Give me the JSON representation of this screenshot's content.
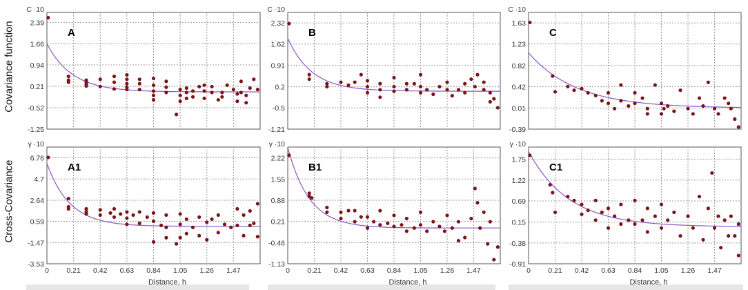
{
  "row_labels": [
    "Covariance function",
    "Cross-Covariance"
  ],
  "axis": {
    "xlabel": "Distance, h",
    "x_ticks": [
      "0",
      "0.21",
      "0.42",
      "0.63",
      "0.84",
      "1.05",
      "1.26",
      "1.47"
    ],
    "x_range": [
      0,
      1.68
    ],
    "units_top": "C ·10",
    "units_bottom": "γ ·10"
  },
  "colors": {
    "points": "#7b1418",
    "curve": "#8a55c6",
    "grid": "#9a9a9a"
  },
  "chart_data": [
    {
      "type": "scatter",
      "label": "A",
      "ylabel": "C ·10",
      "y_ticks": [
        "2.39",
        "1.66",
        "0.94",
        "0.21",
        "-0.52",
        "-1.25"
      ],
      "ylim": [
        -1.25,
        2.73
      ],
      "curve": {
        "nugget": 0.02,
        "sill": 1.64,
        "range": 0.2
      },
      "x": [
        0.01,
        0.17,
        0.17,
        0.17,
        0.31,
        0.31,
        0.31,
        0.31,
        0.42,
        0.42,
        0.53,
        0.53,
        0.53,
        0.63,
        0.63,
        0.63,
        0.63,
        0.63,
        0.73,
        0.73,
        0.73,
        0.84,
        0.84,
        0.84,
        0.84,
        0.84,
        0.94,
        0.94,
        0.94,
        1.02,
        1.05,
        1.05,
        1.05,
        1.1,
        1.1,
        1.1,
        1.15,
        1.15,
        1.2,
        1.24,
        1.24,
        1.24,
        1.3,
        1.3,
        1.35,
        1.38,
        1.38,
        1.42,
        1.47,
        1.5,
        1.5,
        1.53,
        1.53,
        1.57,
        1.57,
        1.6,
        1.63,
        1.66
      ],
      "y": [
        2.55,
        0.55,
        0.42,
        0.35,
        0.42,
        0.35,
        0.28,
        0.22,
        0.45,
        0.2,
        0.55,
        0.35,
        0.12,
        0.6,
        0.45,
        0.3,
        0.18,
        0.1,
        0.45,
        0.3,
        0.1,
        0.48,
        0.25,
        0.05,
        -0.1,
        -0.25,
        0.38,
        0.18,
        0.0,
        -0.75,
        0.1,
        -0.1,
        -0.3,
        0.15,
        0.0,
        -0.2,
        0.05,
        -0.15,
        0.2,
        0.25,
        0.05,
        -0.2,
        0.2,
        0.0,
        -0.25,
        0.0,
        -0.15,
        0.25,
        0.1,
        -0.05,
        -0.3,
        0.38,
        0.0,
        -0.1,
        -0.35,
        0.15,
        0.45,
        0.1
      ]
    },
    {
      "type": "scatter",
      "label": "B",
      "ylabel": "C ·10",
      "y_ticks": [
        "2.32",
        "1.62",
        "0.91",
        "0.2",
        "-0.5",
        "-1.21"
      ],
      "ylim": [
        -1.21,
        2.67
      ],
      "curve": {
        "nugget": 0.05,
        "sill": 1.76,
        "range": 0.19
      },
      "x": [
        0.01,
        0.17,
        0.17,
        0.31,
        0.31,
        0.42,
        0.48,
        0.53,
        0.58,
        0.63,
        0.63,
        0.63,
        0.73,
        0.73,
        0.73,
        0.84,
        0.84,
        0.84,
        0.94,
        0.94,
        1.0,
        1.05,
        1.05,
        1.05,
        1.1,
        1.15,
        1.2,
        1.26,
        1.26,
        1.3,
        1.35,
        1.4,
        1.4,
        1.45,
        1.48,
        1.5,
        1.55,
        1.55,
        1.6,
        1.6,
        1.63,
        1.66
      ],
      "y": [
        2.3,
        0.6,
        0.45,
        0.3,
        0.2,
        0.35,
        0.25,
        0.35,
        0.6,
        0.4,
        0.2,
        0.0,
        0.3,
        0.1,
        -0.15,
        0.5,
        0.2,
        0.05,
        0.3,
        0.1,
        0.3,
        0.6,
        0.2,
        0.0,
        0.1,
        -0.05,
        0.2,
        0.35,
        0.1,
        -0.1,
        0.1,
        0.3,
        0.0,
        0.45,
        0.2,
        0.6,
        0.35,
        0.1,
        0.0,
        -0.3,
        -0.2,
        -0.5
      ]
    },
    {
      "type": "scatter",
      "label": "C",
      "ylabel": "C ·10",
      "y_ticks": [
        "1.63",
        "1.23",
        "0.82",
        "0.42",
        "0.01",
        "-0.39"
      ],
      "ylim": [
        -0.39,
        1.83
      ],
      "curve": {
        "nugget": 0.01,
        "sill": 1.05,
        "range": 0.38
      },
      "x": [
        0.01,
        0.19,
        0.21,
        0.31,
        0.36,
        0.42,
        0.47,
        0.53,
        0.58,
        0.63,
        0.63,
        0.68,
        0.73,
        0.73,
        0.79,
        0.84,
        0.84,
        0.9,
        0.94,
        0.94,
        1.0,
        1.05,
        1.05,
        1.07,
        1.1,
        1.15,
        1.2,
        1.26,
        1.3,
        1.35,
        1.38,
        1.42,
        1.47,
        1.5,
        1.55,
        1.58,
        1.6,
        1.63,
        1.66
      ],
      "y": [
        1.64,
        0.62,
        0.32,
        0.42,
        0.35,
        0.38,
        0.3,
        0.25,
        0.15,
        0.3,
        0.1,
        0.0,
        0.45,
        0.15,
        0.05,
        0.3,
        0.1,
        0.2,
        0.0,
        -0.1,
        0.45,
        0.1,
        -0.1,
        0.0,
        0.05,
        -0.05,
        0.35,
        0.0,
        -0.1,
        0.2,
        0.05,
        0.5,
        0.0,
        -0.1,
        0.2,
        0.1,
        0.0,
        -0.2,
        -0.35
      ]
    },
    {
      "type": "scatter",
      "label": "A1",
      "ylabel": "γ ·10",
      "y_ticks": [
        "6.76",
        "4.7",
        "2.64",
        "0.59",
        "-1.47",
        "-3.53"
      ],
      "ylim": [
        -3.53,
        7.8
      ],
      "curve": {
        "nugget": 0.1,
        "sill": 6.1,
        "range": 0.18
      },
      "x": [
        0.01,
        0.17,
        0.17,
        0.17,
        0.31,
        0.31,
        0.31,
        0.42,
        0.42,
        0.5,
        0.53,
        0.53,
        0.58,
        0.63,
        0.63,
        0.63,
        0.68,
        0.73,
        0.73,
        0.79,
        0.84,
        0.84,
        0.84,
        0.9,
        0.94,
        0.94,
        0.94,
        1.02,
        1.05,
        1.05,
        1.05,
        1.1,
        1.1,
        1.15,
        1.2,
        1.2,
        1.26,
        1.26,
        1.3,
        1.35,
        1.35,
        1.4,
        1.45,
        1.5,
        1.5,
        1.55,
        1.55,
        1.6,
        1.6,
        1.63,
        1.66,
        1.66
      ],
      "y": [
        6.8,
        2.8,
        2.0,
        1.8,
        1.8,
        1.5,
        1.3,
        1.7,
        1.2,
        1.4,
        1.8,
        1.0,
        1.3,
        1.5,
        0.9,
        0.3,
        1.2,
        1.5,
        0.4,
        1.0,
        1.4,
        0.6,
        -1.4,
        0.2,
        1.2,
        0.0,
        -1.0,
        -1.6,
        1.3,
        0.3,
        -1.0,
        0.8,
        -0.6,
        0.0,
        1.0,
        -0.8,
        0.5,
        -1.2,
        0.8,
        1.2,
        -0.5,
        0.3,
        0.0,
        1.8,
        0.2,
        1.2,
        -0.8,
        1.6,
        0.2,
        0.4,
        2.3,
        -0.9
      ]
    },
    {
      "type": "scatter",
      "label": "B1",
      "ylabel": "γ ·10",
      "y_ticks": [
        "2.22",
        "1.55",
        "0.88",
        "0.21",
        "-0.46",
        "-1.13"
      ],
      "ylim": [
        -1.13,
        2.56
      ],
      "curve": {
        "nugget": 0.0,
        "sill": 2.55,
        "range": 0.17
      },
      "x": [
        0.01,
        0.17,
        0.17,
        0.19,
        0.31,
        0.31,
        0.42,
        0.42,
        0.48,
        0.53,
        0.53,
        0.58,
        0.63,
        0.63,
        0.68,
        0.73,
        0.73,
        0.79,
        0.84,
        0.84,
        0.9,
        0.94,
        0.94,
        1.0,
        1.05,
        1.05,
        1.1,
        1.15,
        1.2,
        1.24,
        1.26,
        1.3,
        1.35,
        1.35,
        1.4,
        1.45,
        1.48,
        1.5,
        1.52,
        1.55,
        1.58,
        1.6,
        1.63,
        1.66
      ],
      "y": [
        2.3,
        1.1,
        1.0,
        0.95,
        0.65,
        0.5,
        0.5,
        0.3,
        0.55,
        0.55,
        0.2,
        0.35,
        0.35,
        0.0,
        0.2,
        0.55,
        0.1,
        0.15,
        0.4,
        0.05,
        0.1,
        0.3,
        -0.1,
        0.0,
        0.5,
        0.1,
        -0.1,
        0.2,
        0.05,
        -0.1,
        0.4,
        0.0,
        0.2,
        -0.4,
        -0.3,
        0.3,
        1.25,
        0.8,
        0.0,
        0.5,
        -0.5,
        0.2,
        -1.0,
        -0.6
      ]
    },
    {
      "type": "scatter",
      "label": "C1",
      "ylabel": "γ ·10",
      "y_ticks": [
        "1.75",
        "1.22",
        "0.69",
        "0.15",
        "-0.38",
        "-0.91"
      ],
      "ylim": [
        -0.91,
        2.06
      ],
      "curve": {
        "nugget": 0.03,
        "sill": 1.92,
        "range": 0.32
      },
      "x": [
        0.01,
        0.17,
        0.19,
        0.21,
        0.31,
        0.36,
        0.42,
        0.42,
        0.47,
        0.53,
        0.53,
        0.58,
        0.63,
        0.63,
        0.68,
        0.73,
        0.73,
        0.79,
        0.84,
        0.84,
        0.9,
        0.94,
        0.94,
        1.0,
        1.05,
        1.05,
        1.1,
        1.15,
        1.2,
        1.26,
        1.3,
        1.35,
        1.38,
        1.42,
        1.45,
        1.47,
        1.5,
        1.52,
        1.55,
        1.58,
        1.6,
        1.63,
        1.66,
        1.66
      ],
      "y": [
        1.85,
        1.1,
        0.9,
        0.4,
        0.8,
        0.7,
        0.6,
        0.35,
        0.45,
        0.7,
        0.2,
        0.4,
        0.5,
        0.0,
        0.3,
        0.6,
        0.1,
        0.2,
        0.7,
        0.1,
        0.2,
        0.5,
        -0.1,
        0.3,
        0.6,
        0.0,
        0.2,
        0.4,
        -0.2,
        0.3,
        0.0,
        0.8,
        -0.3,
        0.5,
        1.4,
        0.0,
        0.3,
        -0.5,
        0.2,
        -0.2,
        0.3,
        -0.2,
        0.1,
        -0.7
      ]
    }
  ]
}
